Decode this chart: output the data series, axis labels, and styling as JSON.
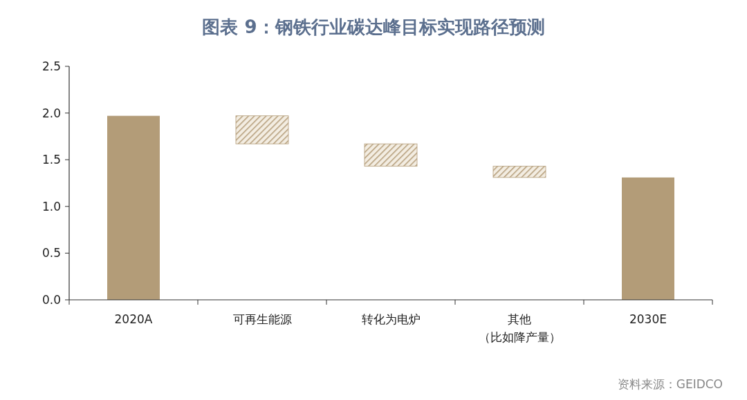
{
  "chart_data": {
    "type": "bar",
    "title": "图表 9：钢铁行业碳达峰目标实现路径预测",
    "categories": [
      "2020A",
      "可再生能源",
      "转化为电炉",
      "其他（比如降产量）",
      "2030E"
    ],
    "values": [
      1.97,
      -0.3,
      -0.24,
      -0.12,
      1.31
    ],
    "base": [
      0,
      1.97,
      1.67,
      1.43,
      0
    ],
    "colors": [
      "#b39c78",
      "#b39c78",
      "#b39c78",
      "#b39c78",
      "#b39c78"
    ],
    "ylim": [
      0,
      2.5
    ],
    "yticks": [
      {
        "value": 0,
        "label": "0.0"
      },
      0.5,
      {
        "value": 1,
        "label": "1.0"
      },
      1.5,
      {
        "value": 2,
        "label": "2.0"
      },
      2.5
    ],
    "annotations": [
      "资料来源：GEIDCO"
    ]
  }
}
